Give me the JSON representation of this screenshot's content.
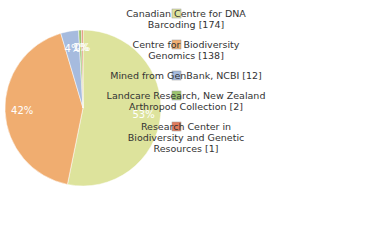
{
  "chart_data": {
    "type": "pie",
    "categories": [
      "Canadian Centre for DNA Barcoding [174]",
      "Centre for Biodiversity Genomics [138]",
      "Mined from GenBank, NCBI [12]",
      "Landcare Research, New Zealand Arthropod Collection [2]",
      "Research Center in Biodiversity and Genetic Resources [1]"
    ],
    "values": [
      53.2,
      42.2,
      3.7,
      0.6,
      0.3
    ],
    "value_labels": [
      "53%",
      "42%",
      "4%",
      "1%",
      "0%"
    ],
    "colors": [
      "#dde39c",
      "#f0ad70",
      "#a6bbde",
      "#9cc46e",
      "#e07b5c"
    ],
    "data_labels": true,
    "legend": "right"
  }
}
